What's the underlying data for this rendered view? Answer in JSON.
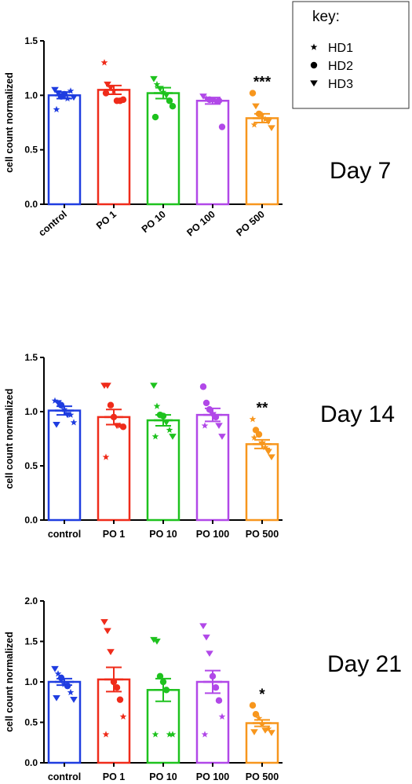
{
  "key": {
    "title": "key:",
    "items": [
      {
        "symbol": "star",
        "label": "HD1"
      },
      {
        "symbol": "circle",
        "label": "HD2"
      },
      {
        "symbol": "triangle-down",
        "label": "HD3"
      }
    ]
  },
  "colors": [
    "#1f3de0",
    "#ef2b1a",
    "#1ec21e",
    "#b148e8",
    "#f7961d"
  ],
  "chart_data": [
    {
      "type": "bar",
      "day_label": "Day 7",
      "ylabel": "cell count normalized",
      "ylim": [
        0,
        1.5
      ],
      "yticks": [
        "0.0",
        "0.5",
        "1.0",
        "1.5"
      ],
      "categories": [
        "control",
        "PO 1",
        "PO 10",
        "PO 100",
        "PO 500"
      ],
      "category_label_rotation": -40,
      "values": [
        1.0,
        1.05,
        1.02,
        0.95,
        0.79
      ],
      "sem": [
        0.03,
        0.04,
        0.05,
        0.03,
        0.04
      ],
      "significance": [
        "",
        "",
        "",
        "",
        "***"
      ],
      "points": [
        [
          [
            1.05,
            "triangle-down"
          ],
          [
            1.02,
            "triangle-down"
          ],
          [
            0.99,
            "circle"
          ],
          [
            1.01,
            "circle"
          ],
          [
            0.97,
            "star"
          ],
          [
            1.04,
            "star"
          ],
          [
            0.98,
            "triangle-down"
          ],
          [
            0.87,
            "star"
          ]
        ],
        [
          [
            1.3,
            "star"
          ],
          [
            1.1,
            "triangle-down"
          ],
          [
            1.07,
            "triangle-down"
          ],
          [
            1.04,
            "star"
          ],
          [
            0.95,
            "circle"
          ],
          [
            0.95,
            "circle"
          ],
          [
            0.96,
            "circle"
          ],
          [
            1.02,
            "circle"
          ]
        ],
        [
          [
            1.15,
            "triangle-down"
          ],
          [
            1.1,
            "star"
          ],
          [
            1.06,
            "triangle-down"
          ],
          [
            1.03,
            "star"
          ],
          [
            1.0,
            "triangle-down"
          ],
          [
            0.95,
            "circle"
          ],
          [
            0.9,
            "circle"
          ],
          [
            0.8,
            "circle"
          ]
        ],
        [
          [
            0.99,
            "triangle-down"
          ],
          [
            0.97,
            "star"
          ],
          [
            0.96,
            "circle"
          ],
          [
            0.95,
            "triangle-down"
          ],
          [
            0.94,
            "star"
          ],
          [
            0.95,
            "circle"
          ],
          [
            0.71,
            "circle"
          ]
        ],
        [
          [
            1.02,
            "circle"
          ],
          [
            0.9,
            "triangle-down"
          ],
          [
            0.83,
            "circle"
          ],
          [
            0.82,
            "star"
          ],
          [
            0.78,
            "star"
          ],
          [
            0.76,
            "triangle-down"
          ],
          [
            0.7,
            "triangle-down"
          ],
          [
            0.73,
            "star"
          ]
        ]
      ]
    },
    {
      "type": "bar",
      "day_label": "Day 14",
      "ylabel": "cell count normalized",
      "ylim": [
        0,
        1.5
      ],
      "yticks": [
        "0.0",
        "0.5",
        "1.0",
        "1.5"
      ],
      "categories": [
        "control",
        "PO 1",
        "PO 10",
        "PO 100",
        "PO 500"
      ],
      "category_label_rotation": 0,
      "values": [
        1.01,
        0.95,
        0.92,
        0.97,
        0.7
      ],
      "sem": [
        0.04,
        0.07,
        0.05,
        0.06,
        0.04
      ],
      "significance": [
        "",
        "",
        "",
        "",
        "**"
      ],
      "points": [
        [
          [
            1.1,
            "star"
          ],
          [
            1.08,
            "triangle-down"
          ],
          [
            1.06,
            "circle"
          ],
          [
            1.02,
            "star"
          ],
          [
            0.97,
            "triangle-down"
          ],
          [
            0.97,
            "star"
          ],
          [
            0.9,
            "star"
          ],
          [
            0.88,
            "triangle-down"
          ]
        ],
        [
          [
            1.24,
            "triangle-down"
          ],
          [
            1.24,
            "triangle-down"
          ],
          [
            1.06,
            "circle"
          ],
          [
            0.95,
            "circle"
          ],
          [
            0.87,
            "triangle-down"
          ],
          [
            0.87,
            "star"
          ],
          [
            0.86,
            "circle"
          ],
          [
            0.58,
            "star"
          ]
        ],
        [
          [
            1.24,
            "triangle-down"
          ],
          [
            1.05,
            "star"
          ],
          [
            0.97,
            "circle"
          ],
          [
            0.96,
            "circle"
          ],
          [
            0.9,
            "triangle-down"
          ],
          [
            0.83,
            "star"
          ],
          [
            0.77,
            "triangle-down"
          ],
          [
            0.77,
            "star"
          ]
        ],
        [
          [
            1.23,
            "circle"
          ],
          [
            1.08,
            "circle"
          ],
          [
            1.02,
            "circle"
          ],
          [
            0.97,
            "triangle-down"
          ],
          [
            0.95,
            "circle"
          ],
          [
            0.87,
            "triangle-down"
          ],
          [
            0.77,
            "triangle-down"
          ],
          [
            0.87,
            "star"
          ]
        ],
        [
          [
            0.93,
            "star"
          ],
          [
            0.83,
            "circle"
          ],
          [
            0.79,
            "circle"
          ],
          [
            0.7,
            "triangle-down"
          ],
          [
            0.67,
            "star"
          ],
          [
            0.63,
            "triangle-down"
          ],
          [
            0.58,
            "triangle-down"
          ],
          [
            0.76,
            "star"
          ]
        ]
      ]
    },
    {
      "type": "bar",
      "day_label": "Day 21",
      "ylabel": "cell count normalized",
      "ylim": [
        0,
        2.0
      ],
      "yticks": [
        "0.0",
        "0.5",
        "1.0",
        "1.5",
        "2.0"
      ],
      "categories": [
        "control",
        "PO 1",
        "PO 10",
        "PO 100",
        "PO 500"
      ],
      "category_label_rotation": 0,
      "values": [
        1.0,
        1.03,
        0.9,
        1.0,
        0.49
      ],
      "sem": [
        0.04,
        0.15,
        0.14,
        0.14,
        0.04
      ],
      "significance": [
        "",
        "",
        "",
        "",
        "*"
      ],
      "points": [
        [
          [
            1.16,
            "triangle-down"
          ],
          [
            1.1,
            "star"
          ],
          [
            1.05,
            "circle"
          ],
          [
            0.97,
            "star"
          ],
          [
            0.95,
            "circle"
          ],
          [
            0.87,
            "star"
          ],
          [
            0.78,
            "triangle-down"
          ],
          [
            0.8,
            "triangle-down"
          ]
        ],
        [
          [
            1.74,
            "triangle-down"
          ],
          [
            1.63,
            "triangle-down"
          ],
          [
            1.37,
            "triangle-down"
          ],
          [
            1.0,
            "circle"
          ],
          [
            0.93,
            "circle"
          ],
          [
            0.78,
            "circle"
          ],
          [
            0.57,
            "star"
          ],
          [
            0.35,
            "star"
          ]
        ],
        [
          [
            1.52,
            "triangle-down"
          ],
          [
            1.5,
            "triangle-down"
          ],
          [
            1.07,
            "circle"
          ],
          [
            1.0,
            "circle"
          ],
          [
            0.9,
            "circle"
          ],
          [
            0.35,
            "star"
          ],
          [
            0.35,
            "star"
          ],
          [
            0.35,
            "star"
          ]
        ],
        [
          [
            1.69,
            "triangle-down"
          ],
          [
            1.55,
            "triangle-down"
          ],
          [
            1.35,
            "triangle-down"
          ],
          [
            1.07,
            "circle"
          ],
          [
            0.93,
            "circle"
          ],
          [
            0.77,
            "circle"
          ],
          [
            0.57,
            "star"
          ],
          [
            0.35,
            "star"
          ]
        ],
        [
          [
            0.71,
            "circle"
          ],
          [
            0.6,
            "circle"
          ],
          [
            0.55,
            "star"
          ],
          [
            0.47,
            "star"
          ],
          [
            0.4,
            "triangle-down"
          ],
          [
            0.42,
            "star"
          ],
          [
            0.37,
            "triangle-down"
          ],
          [
            0.38,
            "triangle-down"
          ]
        ]
      ]
    }
  ]
}
